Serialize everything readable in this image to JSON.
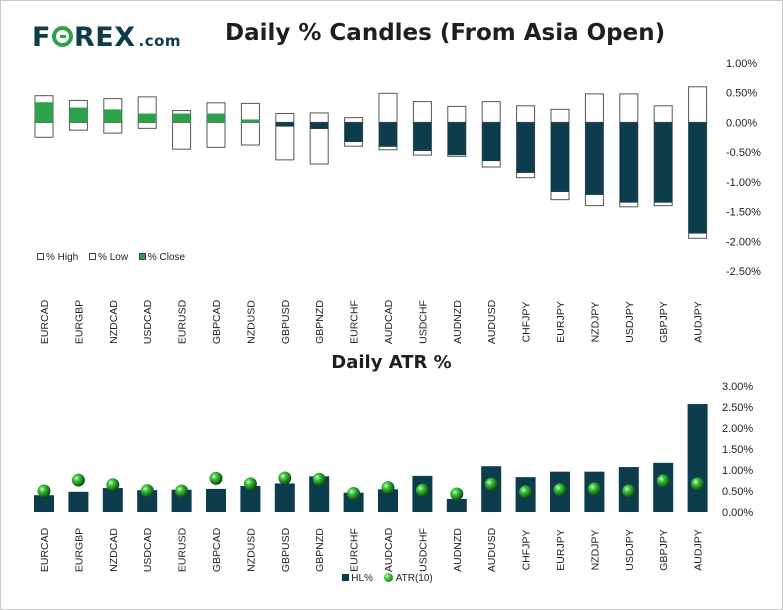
{
  "header": {
    "logo_main": "F",
    "logo_rest": "REX",
    "logo_suffix": ".com"
  },
  "candles_chart": {
    "title": "Daily % Candles (From Asia Open)",
    "legend": {
      "high": "% High",
      "low": "% Low",
      "close": "% Close"
    },
    "colors": {
      "up": "#2da24a",
      "down": "#0d3c4d",
      "box": "#ffffff"
    }
  },
  "atr_chart": {
    "title": "Daily ATR %",
    "legend": {
      "hl": "HL%",
      "atr": "ATR(10)"
    },
    "colors": {
      "bar": "#0d3c4d",
      "dot": "#2da24a"
    }
  },
  "chart_data": [
    {
      "type": "candlestick",
      "title": "Daily % Candles (From Asia Open)",
      "categories": [
        "EURCAD",
        "EURGBP",
        "NZDCAD",
        "USDCAD",
        "EURUSD",
        "GBPCAD",
        "NZDUSD",
        "GBPUSD",
        "GBPNZD",
        "EURCHF",
        "AUDCAD",
        "USDCHF",
        "AUDNZD",
        "AUDUSD",
        "CHFJPY",
        "EURJPY",
        "NZDJPY",
        "USDJPY",
        "GBPJPY",
        "AUDJPY"
      ],
      "series": [
        {
          "name": "% High",
          "values": [
            0.45,
            0.37,
            0.4,
            0.43,
            0.2,
            0.33,
            0.32,
            0.15,
            0.16,
            0.08,
            0.49,
            0.35,
            0.27,
            0.35,
            0.28,
            0.22,
            0.48,
            0.48,
            0.28,
            0.6
          ]
        },
        {
          "name": "% Low",
          "values": [
            -0.25,
            -0.13,
            -0.18,
            -0.1,
            -0.45,
            -0.42,
            -0.38,
            -0.63,
            -0.7,
            -0.4,
            -0.46,
            -0.55,
            -0.57,
            -0.75,
            -0.93,
            -1.3,
            -1.4,
            -1.42,
            -1.4,
            -1.95
          ]
        },
        {
          "name": "% Close",
          "values": [
            0.34,
            0.25,
            0.22,
            0.15,
            0.15,
            0.15,
            0.05,
            -0.07,
            -0.11,
            -0.33,
            -0.41,
            -0.48,
            -0.55,
            -0.65,
            -0.85,
            -1.17,
            -1.22,
            -1.35,
            -1.35,
            -1.87
          ]
        }
      ],
      "ylim": [
        -2.5,
        1.0
      ],
      "yticks": [
        "1.00%",
        "0.50%",
        "0.00%",
        "-0.50%",
        "-1.00%",
        "-1.50%",
        "-2.00%",
        "-2.50%"
      ]
    },
    {
      "type": "bar",
      "title": "Daily ATR %",
      "categories": [
        "EURCAD",
        "EURGBP",
        "NZDCAD",
        "USDCAD",
        "EURUSD",
        "GBPCAD",
        "NZDUSD",
        "GBPUSD",
        "GBPNZD",
        "EURCHF",
        "AUDCAD",
        "USDCHF",
        "AUDNZD",
        "AUDUSD",
        "CHFJPY",
        "EURJPY",
        "NZDJPY",
        "USDJPY",
        "GBPJPY",
        "AUDJPY"
      ],
      "series": [
        {
          "name": "HL%",
          "values": [
            0.4,
            0.48,
            0.57,
            0.52,
            0.53,
            0.55,
            0.62,
            0.68,
            0.85,
            0.46,
            0.54,
            0.86,
            0.31,
            1.09,
            0.83,
            0.96,
            0.96,
            1.07,
            1.17,
            2.57
          ]
        },
        {
          "name": "ATR(10)",
          "values": [
            0.5,
            0.76,
            0.65,
            0.51,
            0.5,
            0.8,
            0.67,
            0.81,
            0.78,
            0.44,
            0.58,
            0.52,
            0.43,
            0.66,
            0.48,
            0.53,
            0.55,
            0.5,
            0.74,
            0.67
          ]
        }
      ],
      "ylim": [
        0,
        3.0
      ],
      "yticks": [
        "3.00%",
        "2.50%",
        "2.00%",
        "1.50%",
        "1.00%",
        "0.50%",
        "0.00%"
      ]
    }
  ]
}
